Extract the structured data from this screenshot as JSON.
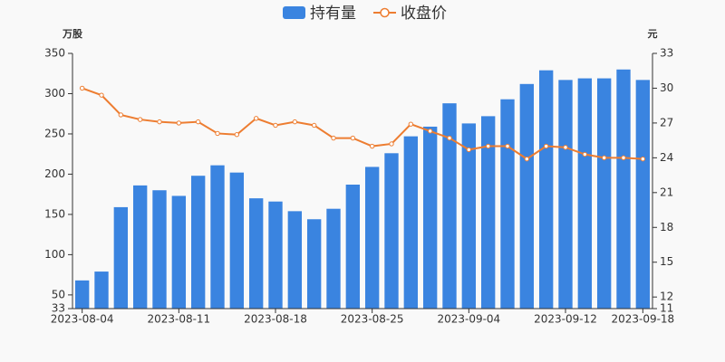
{
  "chart_data": {
    "type": "bar",
    "categories": [
      "2023-08-04",
      null,
      null,
      null,
      null,
      "2023-08-11",
      null,
      null,
      null,
      null,
      "2023-08-18",
      null,
      null,
      null,
      null,
      "2023-08-25",
      null,
      null,
      null,
      null,
      "2023-09-04",
      null,
      null,
      null,
      null,
      "2023-09-12",
      null,
      null,
      null,
      "2023-09-18"
    ],
    "ylabel": "万股",
    "y2label": "元",
    "ylim": [
      33,
      350
    ],
    "yticks": [
      33,
      50,
      100,
      150,
      200,
      250,
      300,
      350
    ],
    "y2lim": [
      11,
      33
    ],
    "y2ticks": [
      11,
      12,
      15,
      18,
      21,
      24,
      27,
      30,
      33
    ],
    "legend": "top",
    "series": [
      {
        "name": "持有量",
        "type": "bar",
        "color": "#3a84e0",
        "values": [
          68,
          79,
          159,
          186,
          180,
          173,
          198,
          211,
          202,
          170,
          166,
          154,
          144,
          157,
          187,
          209,
          226,
          247,
          259,
          288,
          263,
          272,
          293,
          312,
          329,
          317,
          319,
          319,
          330,
          317
        ]
      },
      {
        "name": "收盘价",
        "type": "line",
        "axis": "y2",
        "color": "#ed7d31",
        "values": [
          30.0,
          29.4,
          27.7,
          27.3,
          27.1,
          27.0,
          27.1,
          26.1,
          26.0,
          27.4,
          26.8,
          27.1,
          26.8,
          25.7,
          25.7,
          25.0,
          25.2,
          26.9,
          26.3,
          25.7,
          24.7,
          25.0,
          25.0,
          23.9,
          25.0,
          24.9,
          24.3,
          24.0,
          24.0,
          23.9
        ]
      }
    ]
  }
}
